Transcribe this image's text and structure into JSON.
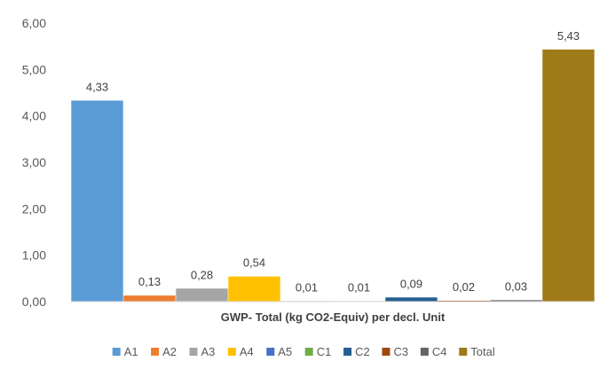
{
  "chart_data": {
    "type": "bar",
    "title": "",
    "xlabel": "GWP- Total (kg CO2-Equiv) per decl. Unit",
    "ylabel": "",
    "ylim": [
      0,
      6
    ],
    "yticks": [
      "0,00",
      "1,00",
      "2,00",
      "3,00",
      "4,00",
      "5,00",
      "6,00"
    ],
    "ytick_values": [
      0,
      1,
      2,
      3,
      4,
      5,
      6
    ],
    "grid": false,
    "legend_position": "bottom",
    "series": [
      {
        "name": "A1",
        "value": 4.33,
        "label": "4,33",
        "color": "#5b9bd5"
      },
      {
        "name": "A2",
        "value": 0.13,
        "label": "0,13",
        "color": "#ed7d31"
      },
      {
        "name": "A3",
        "value": 0.28,
        "label": "0,28",
        "color": "#a5a5a5"
      },
      {
        "name": "A4",
        "value": 0.54,
        "label": "0,54",
        "color": "#ffc000"
      },
      {
        "name": "A5",
        "value": 0.01,
        "label": "0,01",
        "color": "#4472c4"
      },
      {
        "name": "C1",
        "value": 0.01,
        "label": "0,01",
        "color": "#70ad47"
      },
      {
        "name": "C2",
        "value": 0.09,
        "label": "0,09",
        "color": "#255e91"
      },
      {
        "name": "C3",
        "value": 0.02,
        "label": "0,02",
        "color": "#9e480e"
      },
      {
        "name": "C4",
        "value": 0.03,
        "label": "0,03",
        "color": "#636363"
      },
      {
        "name": "Total",
        "value": 5.43,
        "label": "5,43",
        "color": "#9e7a18"
      }
    ]
  }
}
